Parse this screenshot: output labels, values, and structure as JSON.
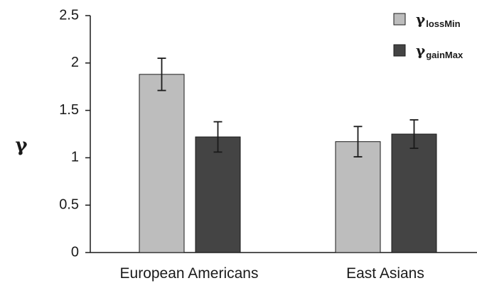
{
  "chart_data": {
    "type": "bar",
    "title": "",
    "xlabel": "",
    "ylabel": "γ",
    "ylim": [
      0,
      2.5
    ],
    "yticks": [
      "0",
      "0.5",
      "1",
      "1.5",
      "2",
      "2.5"
    ],
    "categories": [
      "European Americans",
      "East Asians"
    ],
    "series": [
      {
        "name": "γ",
        "name_subscript": "lossMin",
        "color": "#bdbdbd",
        "values": [
          1.88,
          1.17
        ],
        "error": [
          0.17,
          0.16
        ]
      },
      {
        "name": "γ",
        "name_subscript": "gainMax",
        "color": "#444444",
        "values": [
          1.22,
          1.25
        ],
        "error": [
          0.16,
          0.15
        ]
      }
    ],
    "legend_position": "top-right",
    "grid": false
  }
}
